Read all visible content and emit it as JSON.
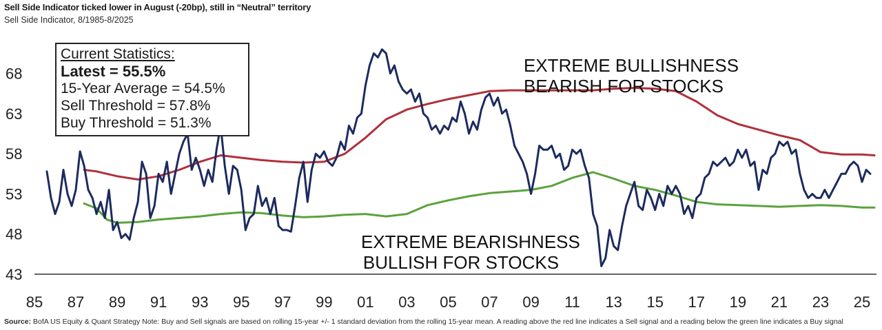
{
  "header": {
    "title": "Sell Side Indicator ticked lower in August (-20bp), still in “Neutral” territory",
    "subtitle": "Sell Side Indicator, 8/1985-8/2025"
  },
  "footer": {
    "source_label": "Source:",
    "source_text": " BofA US Equity & Quant Strategy Note: Buy and Sell signals are based on rolling 15-year +/- 1 standard deviation from the rolling 15-year mean. A reading above the red line indicates a Sell signal and a reading below the green line indicates a Buy signal"
  },
  "stats_box": {
    "heading": "Current Statistics:",
    "latest": "Latest = 55.5%",
    "avg": "15-Year Average = 54.5%",
    "sell": "Sell Threshold = 57.8%",
    "buy": "Buy Threshold = 51.3%"
  },
  "annotations": {
    "top_line1": "EXTREME BULLISHNESS",
    "top_line2": "BEARISH FOR STOCKS",
    "bottom_line1": "EXTREME BEARISHNESS",
    "bottom_line2": "BULLISH FOR STOCKS"
  },
  "colors": {
    "indicator": "#1c2b5e",
    "sell": "#b0303a",
    "buy": "#5aa23c",
    "axis": "#333333"
  },
  "chart_data": {
    "type": "line",
    "xlim": [
      1985,
      2025.7
    ],
    "ylim": [
      43,
      72
    ],
    "x_ticks": [
      1985,
      1987,
      1989,
      1991,
      1993,
      1995,
      1997,
      1999,
      2001,
      2003,
      2005,
      2007,
      2009,
      2011,
      2013,
      2015,
      2017,
      2019,
      2021,
      2023,
      2025
    ],
    "x_tick_labels": [
      "85",
      "87",
      "89",
      "91",
      "93",
      "95",
      "97",
      "99",
      "01",
      "03",
      "05",
      "07",
      "09",
      "11",
      "13",
      "15",
      "17",
      "19",
      "21",
      "23",
      "25"
    ],
    "y_ticks": [
      43,
      48,
      53,
      58,
      63,
      68
    ],
    "y_tick_labels": [
      "43",
      "48",
      "53",
      "58",
      "63",
      "68"
    ],
    "series": [
      {
        "id": "indicator",
        "values": [
          [
            1985.6,
            55.8
          ],
          [
            1985.8,
            52.5
          ],
          [
            1986.0,
            50.5
          ],
          [
            1986.2,
            52.0
          ],
          [
            1986.4,
            56.0
          ],
          [
            1986.6,
            53.0
          ],
          [
            1986.8,
            51.5
          ],
          [
            1987.0,
            53.5
          ],
          [
            1987.2,
            58.3
          ],
          [
            1987.4,
            56.5
          ],
          [
            1987.6,
            53.5
          ],
          [
            1987.8,
            52.5
          ],
          [
            1988.0,
            50.5
          ],
          [
            1988.2,
            52.0
          ],
          [
            1988.4,
            50.0
          ],
          [
            1988.6,
            53.5
          ],
          [
            1988.8,
            48.5
          ],
          [
            1989.0,
            49.5
          ],
          [
            1989.2,
            47.5
          ],
          [
            1989.4,
            48.0
          ],
          [
            1989.6,
            47.3
          ],
          [
            1989.8,
            50.0
          ],
          [
            1990.0,
            52.0
          ],
          [
            1990.2,
            57.0
          ],
          [
            1990.4,
            55.5
          ],
          [
            1990.6,
            50.0
          ],
          [
            1990.8,
            51.5
          ],
          [
            1991.0,
            55.5
          ],
          [
            1991.2,
            54.5
          ],
          [
            1991.4,
            57.0
          ],
          [
            1991.6,
            53.0
          ],
          [
            1991.8,
            55.5
          ],
          [
            1992.0,
            58.0
          ],
          [
            1992.2,
            59.5
          ],
          [
            1992.4,
            60.5
          ],
          [
            1992.6,
            56.0
          ],
          [
            1992.8,
            57.5
          ],
          [
            1993.0,
            56.0
          ],
          [
            1993.2,
            54.0
          ],
          [
            1993.4,
            56.0
          ],
          [
            1993.6,
            54.5
          ],
          [
            1993.8,
            58.5
          ],
          [
            1994.0,
            61.5
          ],
          [
            1994.2,
            56.5
          ],
          [
            1994.4,
            53.0
          ],
          [
            1994.6,
            56.5
          ],
          [
            1994.8,
            56.0
          ],
          [
            1995.0,
            53.5
          ],
          [
            1995.2,
            48.5
          ],
          [
            1995.4,
            50.0
          ],
          [
            1995.6,
            50.5
          ],
          [
            1995.8,
            54.0
          ],
          [
            1996.0,
            51.5
          ],
          [
            1996.2,
            52.5
          ],
          [
            1996.4,
            50.5
          ],
          [
            1996.6,
            52.5
          ],
          [
            1996.8,
            49.0
          ],
          [
            1997.0,
            48.5
          ],
          [
            1997.2,
            48.5
          ],
          [
            1997.4,
            48.3
          ],
          [
            1997.6,
            51.5
          ],
          [
            1997.8,
            55.0
          ],
          [
            1998.0,
            57.0
          ],
          [
            1998.2,
            52.0
          ],
          [
            1998.4,
            56.0
          ],
          [
            1998.6,
            58.0
          ],
          [
            1998.8,
            57.5
          ],
          [
            1999.0,
            58.3
          ],
          [
            1999.2,
            57.0
          ],
          [
            1999.4,
            56.5
          ],
          [
            1999.6,
            57.5
          ],
          [
            1999.8,
            59.5
          ],
          [
            2000.0,
            58.5
          ],
          [
            2000.2,
            61.5
          ],
          [
            2000.4,
            60.5
          ],
          [
            2000.6,
            62.5
          ],
          [
            2000.8,
            63.0
          ],
          [
            2001.0,
            66.5
          ],
          [
            2001.2,
            69.0
          ],
          [
            2001.4,
            70.5
          ],
          [
            2001.6,
            70.0
          ],
          [
            2001.8,
            71.0
          ],
          [
            2002.0,
            70.5
          ],
          [
            2002.2,
            68.0
          ],
          [
            2002.4,
            69.0
          ],
          [
            2002.6,
            67.0
          ],
          [
            2002.8,
            66.0
          ],
          [
            2003.0,
            65.5
          ],
          [
            2003.2,
            66.0
          ],
          [
            2003.4,
            64.5
          ],
          [
            2003.6,
            65.5
          ],
          [
            2003.8,
            63.0
          ],
          [
            2004.0,
            62.5
          ],
          [
            2004.2,
            61.0
          ],
          [
            2004.4,
            61.5
          ],
          [
            2004.6,
            60.5
          ],
          [
            2004.8,
            61.5
          ],
          [
            2005.0,
            61.0
          ],
          [
            2005.2,
            62.5
          ],
          [
            2005.4,
            62.0
          ],
          [
            2005.6,
            64.5
          ],
          [
            2005.8,
            63.0
          ],
          [
            2006.0,
            60.5
          ],
          [
            2006.2,
            62.0
          ],
          [
            2006.4,
            61.0
          ],
          [
            2006.6,
            63.5
          ],
          [
            2006.8,
            65.0
          ],
          [
            2007.0,
            65.5
          ],
          [
            2007.2,
            64.0
          ],
          [
            2007.4,
            65.0
          ],
          [
            2007.6,
            63.0
          ],
          [
            2007.8,
            63.5
          ],
          [
            2008.0,
            61.5
          ],
          [
            2008.2,
            59.0
          ],
          [
            2008.4,
            58.0
          ],
          [
            2008.6,
            57.0
          ],
          [
            2008.8,
            55.5
          ],
          [
            2009.0,
            53.0
          ],
          [
            2009.2,
            55.5
          ],
          [
            2009.4,
            59.0
          ],
          [
            2009.6,
            58.5
          ],
          [
            2009.8,
            58.5
          ],
          [
            2010.0,
            59.0
          ],
          [
            2010.2,
            57.5
          ],
          [
            2010.4,
            58.0
          ],
          [
            2010.6,
            56.0
          ],
          [
            2010.8,
            56.5
          ],
          [
            2011.0,
            58.5
          ],
          [
            2011.2,
            58.0
          ],
          [
            2011.4,
            58.5
          ],
          [
            2011.6,
            56.5
          ],
          [
            2011.8,
            55.0
          ],
          [
            2012.0,
            50.5
          ],
          [
            2012.2,
            49.0
          ],
          [
            2012.4,
            44.0
          ],
          [
            2012.6,
            45.0
          ],
          [
            2012.8,
            48.5
          ],
          [
            2013.0,
            46.5
          ],
          [
            2013.2,
            46.0
          ],
          [
            2013.4,
            49.0
          ],
          [
            2013.6,
            51.5
          ],
          [
            2013.8,
            53.0
          ],
          [
            2014.0,
            54.5
          ],
          [
            2014.2,
            51.5
          ],
          [
            2014.4,
            51.0
          ],
          [
            2014.6,
            53.5
          ],
          [
            2014.8,
            52.5
          ],
          [
            2015.0,
            51.0
          ],
          [
            2015.2,
            53.0
          ],
          [
            2015.4,
            51.5
          ],
          [
            2015.6,
            54.0
          ],
          [
            2015.8,
            53.0
          ],
          [
            2016.0,
            54.0
          ],
          [
            2016.2,
            53.0
          ],
          [
            2016.4,
            50.5
          ],
          [
            2016.6,
            51.5
          ],
          [
            2016.8,
            50.0
          ],
          [
            2017.0,
            52.5
          ],
          [
            2017.2,
            53.0
          ],
          [
            2017.4,
            55.0
          ],
          [
            2017.6,
            55.5
          ],
          [
            2017.8,
            57.0
          ],
          [
            2018.0,
            56.5
          ],
          [
            2018.2,
            57.0
          ],
          [
            2018.4,
            57.5
          ],
          [
            2018.6,
            56.5
          ],
          [
            2018.8,
            57.0
          ],
          [
            2019.0,
            58.5
          ],
          [
            2019.2,
            57.5
          ],
          [
            2019.4,
            58.5
          ],
          [
            2019.6,
            56.5
          ],
          [
            2019.8,
            57.0
          ],
          [
            2020.0,
            53.5
          ],
          [
            2020.2,
            56.0
          ],
          [
            2020.4,
            55.5
          ],
          [
            2020.6,
            57.5
          ],
          [
            2020.8,
            58.0
          ],
          [
            2021.0,
            59.5
          ],
          [
            2021.2,
            59.0
          ],
          [
            2021.4,
            59.5
          ],
          [
            2021.6,
            58.0
          ],
          [
            2021.8,
            58.5
          ],
          [
            2022.0,
            55.5
          ],
          [
            2022.2,
            53.5
          ],
          [
            2022.4,
            52.5
          ],
          [
            2022.6,
            53.0
          ],
          [
            2022.8,
            52.5
          ],
          [
            2023.0,
            52.5
          ],
          [
            2023.2,
            53.5
          ],
          [
            2023.4,
            52.5
          ],
          [
            2023.6,
            53.5
          ],
          [
            2023.8,
            54.5
          ],
          [
            2024.0,
            55.5
          ],
          [
            2024.2,
            55.5
          ],
          [
            2024.4,
            56.5
          ],
          [
            2024.6,
            57.0
          ],
          [
            2024.8,
            56.5
          ],
          [
            2025.0,
            54.5
          ],
          [
            2025.2,
            56.0
          ],
          [
            2025.4,
            55.5
          ]
        ]
      },
      {
        "id": "sell-threshold",
        "values": [
          [
            1987.4,
            56.0
          ],
          [
            1988.0,
            55.8
          ],
          [
            1989.0,
            55.2
          ],
          [
            1990.0,
            54.8
          ],
          [
            1991.0,
            55.2
          ],
          [
            1992.0,
            56.0
          ],
          [
            1993.0,
            57.0
          ],
          [
            1994.0,
            57.8
          ],
          [
            1995.0,
            57.5
          ],
          [
            1996.0,
            57.2
          ],
          [
            1997.0,
            57.0
          ],
          [
            1998.0,
            56.9
          ],
          [
            1999.0,
            57.0
          ],
          [
            2000.0,
            58.0
          ],
          [
            2001.0,
            60.0
          ],
          [
            2002.0,
            62.3
          ],
          [
            2003.0,
            63.5
          ],
          [
            2004.0,
            64.2
          ],
          [
            2005.0,
            64.8
          ],
          [
            2006.0,
            65.3
          ],
          [
            2007.0,
            65.8
          ],
          [
            2008.0,
            65.9
          ],
          [
            2009.0,
            65.9
          ],
          [
            2010.0,
            65.9
          ],
          [
            2011.0,
            65.9
          ],
          [
            2012.0,
            65.9
          ],
          [
            2013.0,
            66.1
          ],
          [
            2014.0,
            66.2
          ],
          [
            2015.0,
            66.1
          ],
          [
            2016.0,
            65.8
          ],
          [
            2017.0,
            64.5
          ],
          [
            2018.0,
            62.8
          ],
          [
            2019.0,
            61.7
          ],
          [
            2020.0,
            61.0
          ],
          [
            2021.0,
            60.3
          ],
          [
            2022.0,
            59.7
          ],
          [
            2023.0,
            58.2
          ],
          [
            2024.0,
            57.9
          ],
          [
            2025.0,
            57.9
          ],
          [
            2025.6,
            57.8
          ]
        ]
      },
      {
        "id": "buy-threshold",
        "values": [
          [
            1987.4,
            51.8
          ],
          [
            1988.0,
            51.2
          ],
          [
            1988.5,
            49.8
          ],
          [
            1989.0,
            49.4
          ],
          [
            1990.0,
            49.5
          ],
          [
            1991.0,
            49.8
          ],
          [
            1992.0,
            50.0
          ],
          [
            1993.0,
            50.2
          ],
          [
            1994.0,
            50.5
          ],
          [
            1995.0,
            50.7
          ],
          [
            1996.0,
            50.6
          ],
          [
            1997.0,
            50.3
          ],
          [
            1998.0,
            50.1
          ],
          [
            1999.0,
            50.2
          ],
          [
            2000.0,
            50.4
          ],
          [
            2001.0,
            50.5
          ],
          [
            2002.0,
            50.2
          ],
          [
            2003.0,
            50.5
          ],
          [
            2004.0,
            51.6
          ],
          [
            2005.0,
            52.2
          ],
          [
            2006.0,
            52.7
          ],
          [
            2007.0,
            53.1
          ],
          [
            2008.0,
            53.3
          ],
          [
            2009.0,
            53.5
          ],
          [
            2010.0,
            54.0
          ],
          [
            2011.0,
            55.0
          ],
          [
            2012.0,
            55.7
          ],
          [
            2013.0,
            54.9
          ],
          [
            2014.0,
            54.0
          ],
          [
            2015.0,
            53.5
          ],
          [
            2016.0,
            52.8
          ],
          [
            2017.0,
            52.0
          ],
          [
            2018.0,
            51.7
          ],
          [
            2019.0,
            51.6
          ],
          [
            2020.0,
            51.5
          ],
          [
            2021.0,
            51.4
          ],
          [
            2022.0,
            51.5
          ],
          [
            2023.0,
            51.6
          ],
          [
            2024.0,
            51.5
          ],
          [
            2025.0,
            51.3
          ],
          [
            2025.6,
            51.3
          ]
        ]
      }
    ]
  }
}
